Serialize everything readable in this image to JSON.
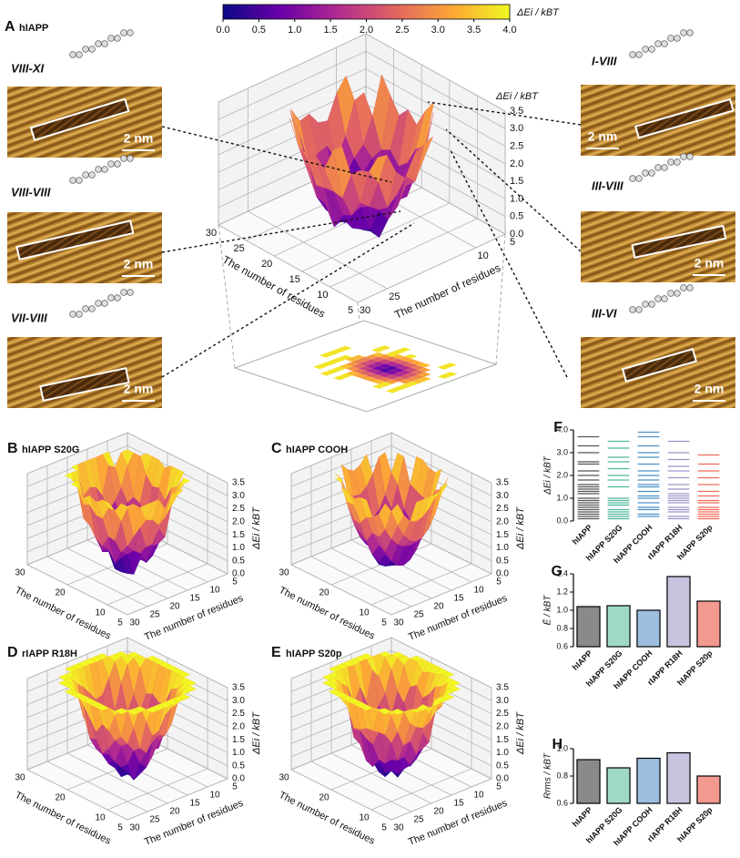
{
  "chart_data": [
    {
      "type": "surface3d",
      "panel": "A",
      "title": "hIAPP",
      "xlabel": "The number of residues",
      "ylabel": "The number of residues",
      "zlabel": "ΔEi / kBT",
      "xlim": [
        5,
        30
      ],
      "xticks": [
        30,
        25,
        20,
        15,
        10,
        5
      ],
      "ylim": [
        5,
        30
      ],
      "yticks": [
        5,
        10,
        25,
        30
      ],
      "zlim": [
        0,
        3.5
      ],
      "zticks": [
        {
          "value": 0,
          "label": "0.0"
        },
        0.5,
        {
          "value": 1,
          "label": "1.0"
        },
        1.5,
        {
          "value": 2,
          "label": "2.0"
        },
        2.5,
        {
          "value": 3,
          "label": "3.0"
        },
        3.5
      ],
      "colorbar_label": "ΔEi / kBT",
      "colorbar_lim": [
        0,
        4
      ],
      "colorbar_ticks": [
        {
          "value": 0,
          "label": "0.0"
        },
        0.5,
        {
          "value": 1,
          "label": "1.0"
        },
        1.5,
        {
          "value": 2,
          "label": "2.0"
        },
        2.5,
        {
          "value": 3,
          "label": "3.0"
        },
        3.5,
        {
          "value": 4,
          "label": "4.0"
        }
      ],
      "images": [
        {
          "label": "VIII-XI",
          "scale_label": "2 nm"
        },
        {
          "label": "VIII-VIII",
          "scale_label": "2 nm"
        },
        {
          "label": "VII-VIII",
          "scale_label": "2 nm"
        },
        {
          "label": "I-VIII",
          "scale_label": "2 nm"
        },
        {
          "label": "III-VIII",
          "scale_label": "2 nm"
        },
        {
          "label": "III-VI",
          "scale_label": "2 nm"
        }
      ]
    },
    {
      "type": "surface3d",
      "panel": "B",
      "title": "hIAPP S20G",
      "xlabel": "The number of residues",
      "ylabel": "The number of residues",
      "zlabel": "ΔEi / kBT",
      "xlim": [
        5,
        30
      ],
      "xticks": [
        30,
        20,
        10,
        5
      ],
      "ylim": [
        5,
        30
      ],
      "yticks": [
        5,
        10,
        15,
        20,
        25,
        30
      ],
      "zlim": [
        0,
        3.5
      ],
      "zticks": [
        {
          "value": 0,
          "label": "0.0"
        },
        0.5,
        {
          "value": 1,
          "label": "1.0"
        },
        1.5,
        {
          "value": 2,
          "label": "2.0"
        },
        2.5,
        {
          "value": 3,
          "label": "3.0"
        },
        3.5
      ]
    },
    {
      "type": "surface3d",
      "panel": "C",
      "title": "hIAPP COOH",
      "xlabel": "The number of residues",
      "ylabel": "The number of residues",
      "zlabel": "ΔEi / kBT",
      "xlim": [
        5,
        30
      ],
      "xticks": [
        30,
        20,
        10,
        5
      ],
      "ylim": [
        5,
        30
      ],
      "yticks": [
        5,
        10,
        15,
        20,
        25,
        30
      ],
      "zlim": [
        0,
        3.5
      ],
      "zticks": [
        {
          "value": 0,
          "label": "0.0"
        },
        0.5,
        {
          "value": 1,
          "label": "1.0"
        },
        1.5,
        {
          "value": 2,
          "label": "2.0"
        },
        2.5,
        {
          "value": 3,
          "label": "3.0"
        },
        3.5
      ]
    },
    {
      "type": "surface3d",
      "panel": "D",
      "title": "rIAPP R18H",
      "xlabel": "The number of residues",
      "ylabel": "The number of residues",
      "zlabel": "ΔEi / kBT",
      "xlim": [
        5,
        30
      ],
      "xticks": [
        30,
        20,
        10,
        5
      ],
      "ylim": [
        5,
        30
      ],
      "yticks": [
        5,
        10,
        15,
        20,
        25,
        30
      ],
      "zlim": [
        0,
        3.5
      ],
      "zticks": [
        {
          "value": 0,
          "label": "0.0"
        },
        0.5,
        {
          "value": 1,
          "label": "1.0"
        },
        1.5,
        {
          "value": 2,
          "label": "2.0"
        },
        2.5,
        {
          "value": 3,
          "label": "3.0"
        },
        3.5
      ]
    },
    {
      "type": "surface3d",
      "panel": "E",
      "title": "hIAPP S20p",
      "xlabel": "The number of residues",
      "ylabel": "The number of residues",
      "zlabel": "ΔEi / kBT",
      "xlim": [
        5,
        30
      ],
      "xticks": [
        30,
        20,
        10,
        5
      ],
      "ylim": [
        5,
        30
      ],
      "yticks": [
        5,
        10,
        15,
        20,
        25,
        30
      ],
      "zlim": [
        0,
        3.5
      ],
      "zticks": [
        {
          "value": 0,
          "label": "0.0"
        },
        0.5,
        {
          "value": 1,
          "label": "1.0"
        },
        1.5,
        {
          "value": 2,
          "label": "2.0"
        },
        2.5,
        {
          "value": 3,
          "label": "3.0"
        },
        3.5
      ]
    },
    {
      "type": "levels",
      "panel": "F",
      "ylabel": "ΔEi / kBT",
      "ylim": [
        0,
        4
      ],
      "yticks": [
        {
          "value": 0,
          "label": "0.0"
        },
        {
          "value": 1,
          "label": "1.0"
        },
        {
          "value": 2,
          "label": "2.0"
        },
        {
          "value": 3,
          "label": "3.0"
        },
        {
          "value": 4,
          "label": "4.0"
        }
      ],
      "series": [
        {
          "name": "hIAPP",
          "color": "#555555",
          "values": [
            3.7,
            3.3,
            3.0,
            2.6,
            2.5,
            2.2,
            2.0,
            1.8,
            1.6,
            1.5,
            1.4,
            1.3,
            1.2,
            1.0,
            0.9,
            0.8,
            0.7,
            0.6,
            0.5,
            0.4,
            0.3,
            0.2,
            0.1
          ]
        },
        {
          "name": "hIAPP S20G",
          "color": "#4fb89c",
          "values": [
            3.5,
            3.2,
            2.8,
            2.6,
            2.3,
            2.0,
            1.8,
            1.5,
            1.0,
            0.9,
            0.8,
            0.7,
            0.5,
            0.4,
            0.3,
            0.2,
            0.1
          ]
        },
        {
          "name": "hIAPP COOH",
          "color": "#4a8fc8",
          "values": [
            3.9,
            3.7,
            3.3,
            3.0,
            2.8,
            2.5,
            2.2,
            2.0,
            1.8,
            1.6,
            1.5,
            1.3,
            1.1,
            1.0,
            0.8,
            0.6,
            0.5,
            0.3,
            0.2
          ]
        },
        {
          "name": "rIAPP R18H",
          "color": "#9a96c8",
          "values": [
            3.5,
            3.0,
            2.7,
            2.4,
            2.2,
            1.9,
            1.6,
            1.4,
            1.2,
            1.1,
            1.0,
            0.9,
            0.8,
            0.6,
            0.5,
            0.4,
            0.2,
            0.1
          ]
        },
        {
          "name": "hIAPP S20p",
          "color": "#f06b5a",
          "values": [
            2.9,
            2.5,
            2.2,
            1.9,
            1.6,
            1.3,
            1.1,
            0.9,
            0.8,
            0.6,
            0.5,
            0.4,
            0.3,
            0.2,
            0.1
          ]
        }
      ]
    },
    {
      "type": "bar",
      "panel": "G",
      "ylabel": "Ē / kBT",
      "ylim": [
        0.6,
        1.4
      ],
      "yticks": [
        0.6,
        0.8,
        {
          "value": 1,
          "label": "1.0"
        },
        1.2,
        1.4
      ],
      "categories": [
        "hIAPP",
        "hIAPP S20G",
        "hIAPP COOH",
        "rIAPP R18H",
        "hIAPP S20p"
      ],
      "values": [
        1.04,
        1.05,
        1.0,
        1.37,
        1.1
      ],
      "colors": [
        "#8a8a8a",
        "#9fd9c8",
        "#9dbfe0",
        "#c8c4e0",
        "#f29a8f"
      ]
    },
    {
      "type": "bar",
      "panel": "H",
      "ylabel": "Rrms / kBT",
      "ylim": [
        0.6,
        1.0
      ],
      "yticks": [
        0.6,
        0.8,
        {
          "value": 1,
          "label": "1.0"
        }
      ],
      "categories": [
        "hIAPP",
        "hIAPP S20G",
        "hIAPP COOH",
        "rIAPP R18H",
        "hIAPP S20p"
      ],
      "values": [
        0.92,
        0.86,
        0.93,
        0.97,
        0.8
      ],
      "colors": [
        "#8a8a8a",
        "#9fd9c8",
        "#9dbfe0",
        "#c8c4e0",
        "#f29a8f"
      ]
    }
  ]
}
